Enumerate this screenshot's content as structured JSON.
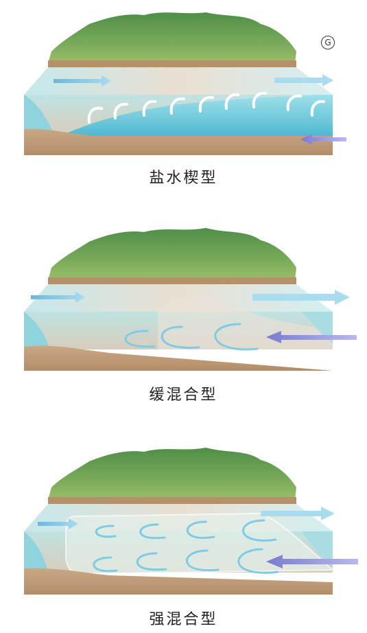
{
  "corner_mark": "G",
  "colors": {
    "hill_green": "#5f9a4f",
    "ground_brown": "#c2a07c",
    "water": "#8fd3dc",
    "saltwater_deep": "#5fc3d6",
    "fresh_arrow": "#7ec7e0",
    "salt_arrow": "#8f8fd8"
  },
  "diagrams": [
    {
      "caption": "盐水楔型"
    },
    {
      "caption": "缓混合型"
    },
    {
      "caption": "强混合型"
    }
  ]
}
